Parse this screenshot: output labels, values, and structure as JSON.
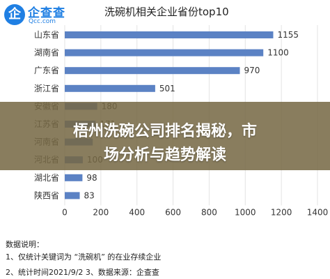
{
  "header": {
    "logo_text": "企查查",
    "logo_domain": "Qcc.com",
    "logo_mark": "企"
  },
  "chart_data": {
    "type": "bar",
    "orientation": "horizontal",
    "title": "洗碗机相关企业省份top10",
    "categories": [
      "山东省",
      "湖南省",
      "广东省",
      "浙江省",
      "安徽省",
      "江苏省",
      "河南省",
      "河北省",
      "湖北省",
      "陕西省"
    ],
    "values": [
      1155,
      1100,
      970,
      501,
      180,
      171,
      155,
      100,
      98,
      83
    ],
    "value_labels": [
      "1155",
      "1100",
      "970",
      "501",
      "180",
      "171",
      "",
      "100",
      "98",
      "83"
    ],
    "xlim": [
      0,
      1400
    ],
    "xticks": [
      "0",
      "200",
      "400",
      "600",
      "800",
      "1000",
      "1200",
      "1400"
    ],
    "grid": true,
    "bar_color": "#5b82c4",
    "xlabel": "",
    "ylabel": ""
  },
  "banner": {
    "line1": "梧州洗碗公司排名揭秘，市",
    "line2": "场分析与趋势解读"
  },
  "notes": {
    "heading": "数据说明：",
    "line1": "1、仅统计关键词为 “洗碗机” 的在业存续企业",
    "line2": "2、统计时间2021/9/2   3、数据来源：企查查"
  }
}
